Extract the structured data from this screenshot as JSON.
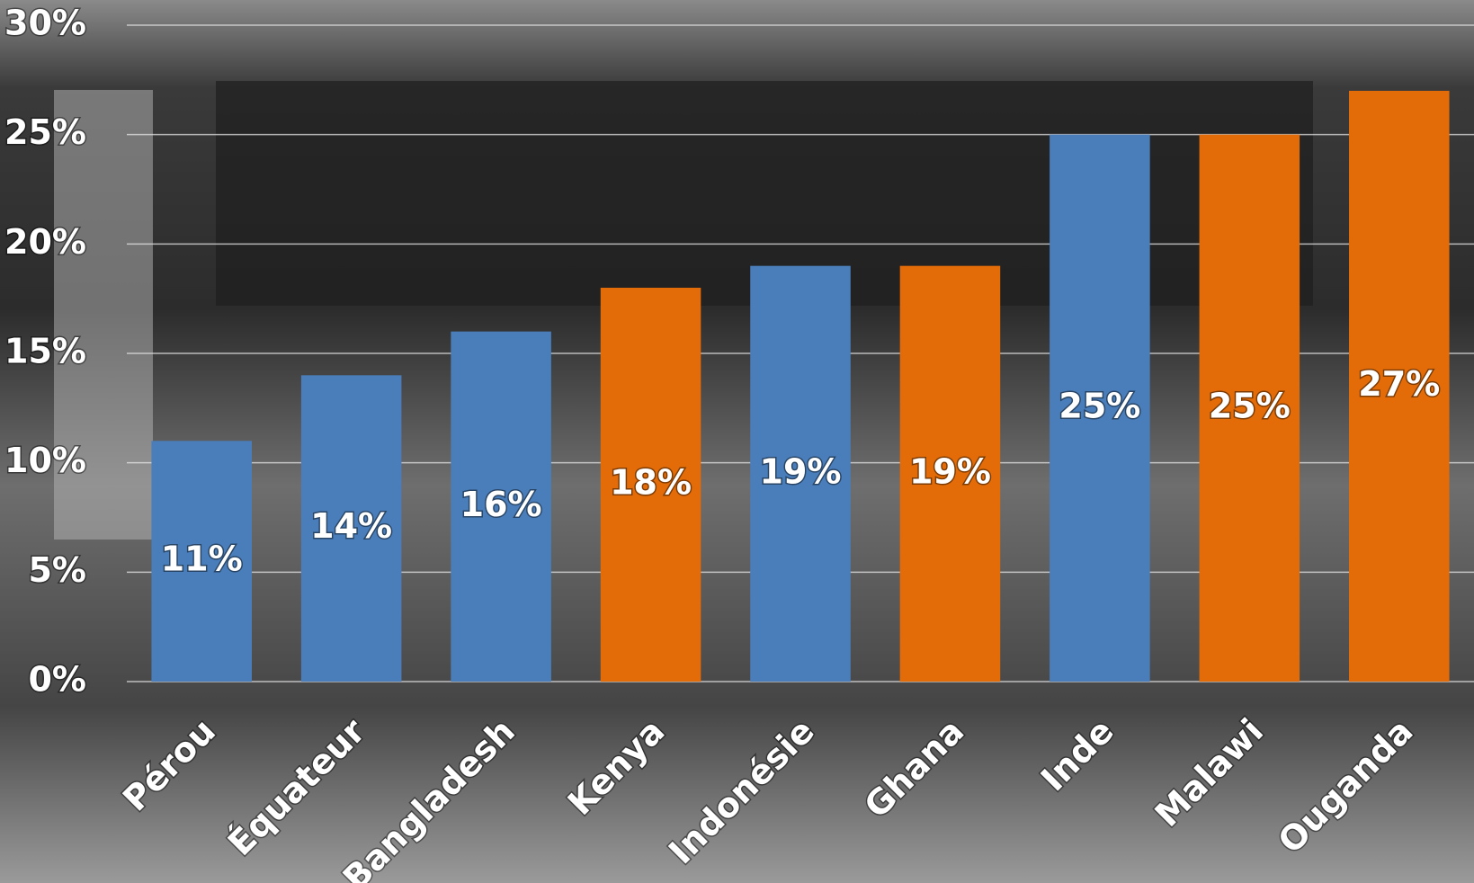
{
  "chart_data": {
    "type": "bar",
    "categories": [
      "Pérou",
      "Équateur",
      "Bangladesh",
      "Kenya",
      "Indonésie",
      "Ghana",
      "Inde",
      "Malawi",
      "Ouganda"
    ],
    "values": [
      11,
      14,
      16,
      18,
      19,
      19,
      25,
      25,
      27
    ],
    "value_labels": [
      "11%",
      "14%",
      "16%",
      "18%",
      "19%",
      "19%",
      "25%",
      "25%",
      "27%"
    ],
    "colors": [
      "#4a7ebb",
      "#4a7ebb",
      "#4a7ebb",
      "#e36c09",
      "#4a7ebb",
      "#e36c09",
      "#4a7ebb",
      "#e36c09",
      "#e36c09"
    ],
    "ylim": [
      0,
      30
    ],
    "yticks": [
      {
        "value": 0,
        "label": "0%"
      },
      {
        "value": 5,
        "label": "5%"
      },
      {
        "value": 10,
        "label": "10%"
      },
      {
        "value": 15,
        "label": "15%"
      },
      {
        "value": 20,
        "label": "20%"
      },
      {
        "value": 25,
        "label": "25%"
      },
      {
        "value": 30,
        "label": "30%"
      }
    ],
    "grid": true
  }
}
